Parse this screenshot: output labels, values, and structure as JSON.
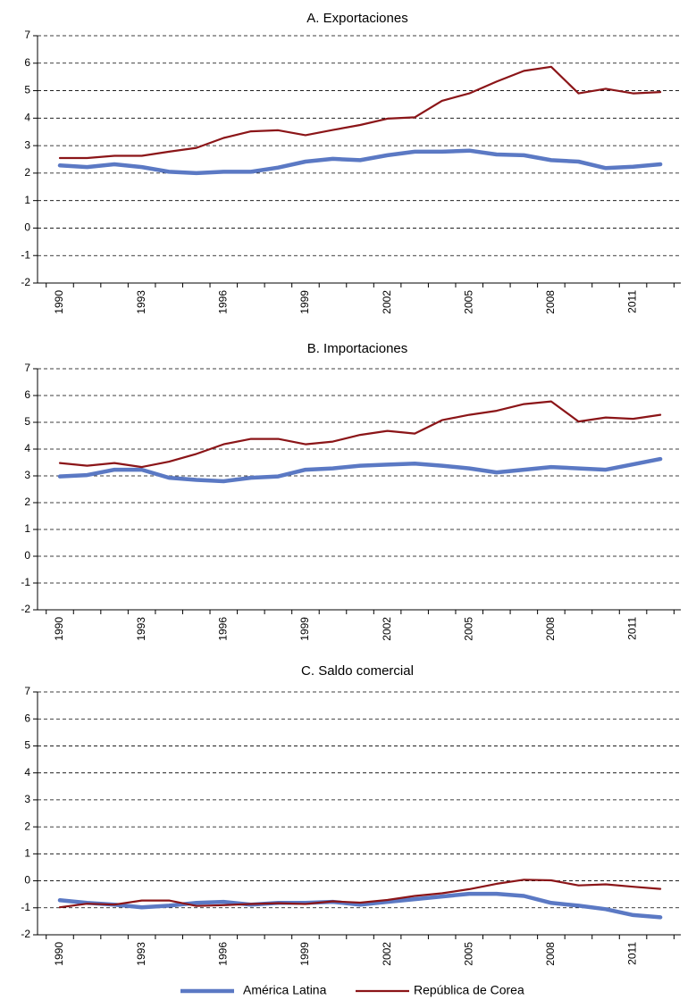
{
  "chart_data": [
    {
      "type": "line",
      "title": "A. Exportaciones",
      "x": [
        1990,
        1991,
        1992,
        1993,
        1994,
        1995,
        1996,
        1997,
        1998,
        1999,
        2000,
        2001,
        2002,
        2003,
        2004,
        2005,
        2006,
        2007,
        2008,
        2009,
        2010,
        2011,
        2012
      ],
      "xtick_labels": [
        "1990",
        "1993",
        "1996",
        "1999",
        "2002",
        "2005",
        "2008",
        "2011"
      ],
      "ylim": [
        -2,
        7
      ],
      "yticks": [
        "-2",
        "-1",
        "0",
        "1",
        "2",
        "3",
        "4",
        "5",
        "6",
        "7"
      ],
      "grid": "horizontal dashed",
      "series": [
        {
          "name": "América Latina",
          "color": "#5b79c4",
          "values": [
            2.28,
            2.22,
            2.32,
            2.22,
            2.05,
            2.0,
            2.05,
            2.05,
            2.2,
            2.42,
            2.52,
            2.47,
            2.65,
            2.78,
            2.78,
            2.82,
            2.68,
            2.65,
            2.47,
            2.42,
            2.18,
            2.23,
            2.32
          ]
        },
        {
          "name": "República de Corea",
          "color": "#8b1518",
          "values": [
            2.55,
            2.55,
            2.63,
            2.63,
            2.78,
            2.92,
            3.28,
            3.52,
            3.56,
            3.38,
            3.57,
            3.75,
            3.98,
            4.03,
            4.63,
            4.9,
            5.33,
            5.72,
            5.87,
            4.9,
            5.07,
            4.9,
            4.95
          ]
        }
      ]
    },
    {
      "type": "line",
      "title": "B. Importaciones",
      "x": [
        1990,
        1991,
        1992,
        1993,
        1994,
        1995,
        1996,
        1997,
        1998,
        1999,
        2000,
        2001,
        2002,
        2003,
        2004,
        2005,
        2006,
        2007,
        2008,
        2009,
        2010,
        2011,
        2012
      ],
      "xtick_labels": [
        "1990",
        "1993",
        "1996",
        "1999",
        "2002",
        "2005",
        "2008",
        "2011"
      ],
      "ylim": [
        -2,
        7
      ],
      "yticks": [
        "-2",
        "-1",
        "0",
        "1",
        "2",
        "3",
        "4",
        "5",
        "6",
        "7"
      ],
      "grid": "horizontal dashed",
      "series": [
        {
          "name": "América Latina",
          "color": "#5b79c4",
          "values": [
            2.98,
            3.03,
            3.23,
            3.23,
            2.93,
            2.85,
            2.8,
            2.93,
            2.98,
            3.23,
            3.28,
            3.38,
            3.42,
            3.46,
            3.38,
            3.28,
            3.13,
            3.23,
            3.33,
            3.28,
            3.23,
            3.43,
            3.63
          ]
        },
        {
          "name": "República de Corea",
          "color": "#8b1518",
          "values": [
            3.48,
            3.38,
            3.48,
            3.33,
            3.53,
            3.82,
            4.18,
            4.38,
            4.38,
            4.18,
            4.28,
            4.53,
            4.68,
            4.58,
            5.08,
            5.28,
            5.43,
            5.68,
            5.78,
            5.03,
            5.18,
            5.13,
            5.28
          ]
        }
      ]
    },
    {
      "type": "line",
      "title": "C. Saldo comercial",
      "x": [
        1990,
        1991,
        1992,
        1993,
        1994,
        1995,
        1996,
        1997,
        1998,
        1999,
        2000,
        2001,
        2002,
        2003,
        2004,
        2005,
        2006,
        2007,
        2008,
        2009,
        2010,
        2011,
        2012
      ],
      "xtick_labels": [
        "1990",
        "1993",
        "1996",
        "1999",
        "2002",
        "2005",
        "2008",
        "2011"
      ],
      "ylim": [
        -2,
        7
      ],
      "yticks": [
        "-2",
        "-1",
        "0",
        "1",
        "2",
        "3",
        "4",
        "5",
        "6",
        "7"
      ],
      "grid": "horizontal dashed",
      "series": [
        {
          "name": "América Latina",
          "color": "#5b79c4",
          "values": [
            -0.72,
            -0.82,
            -0.88,
            -0.98,
            -0.92,
            -0.82,
            -0.78,
            -0.88,
            -0.82,
            -0.82,
            -0.78,
            -0.88,
            -0.78,
            -0.68,
            -0.58,
            -0.48,
            -0.48,
            -0.56,
            -0.82,
            -0.92,
            -1.05,
            -1.27,
            -1.35
          ]
        },
        {
          "name": "República de Corea",
          "color": "#8b1518",
          "values": [
            -0.98,
            -0.85,
            -0.88,
            -0.73,
            -0.73,
            -0.93,
            -0.9,
            -0.86,
            -0.83,
            -0.86,
            -0.76,
            -0.81,
            -0.71,
            -0.56,
            -0.46,
            -0.31,
            -0.11,
            0.04,
            0.02,
            -0.17,
            -0.13,
            -0.22,
            -0.3
          ]
        }
      ]
    }
  ],
  "legend": {
    "position": "bottom-center",
    "items": [
      {
        "label": "América Latina",
        "color": "#5b79c4"
      },
      {
        "label": "República de Corea",
        "color": "#8b1518"
      }
    ]
  }
}
